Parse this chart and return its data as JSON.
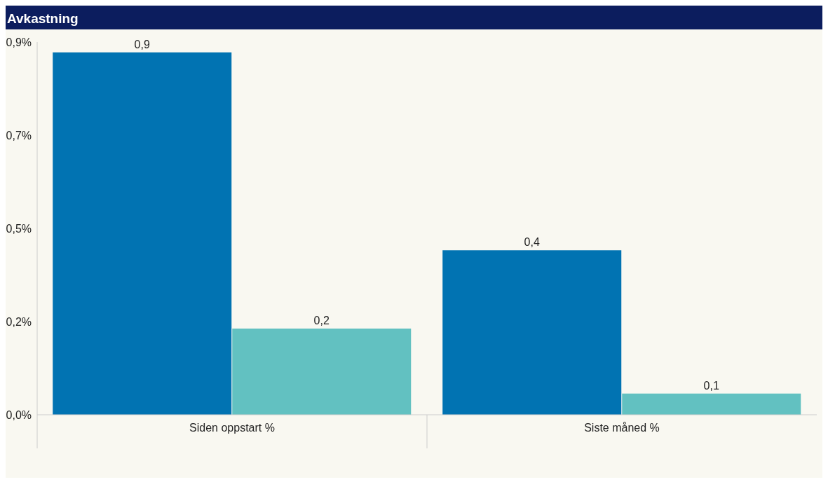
{
  "chart_data": {
    "type": "bar",
    "title": "Avkastning",
    "categories": [
      "Siden oppstart %",
      "Siste måned %"
    ],
    "series": [
      {
        "color": "#0173b2",
        "values": [
          0.875,
          0.397
        ],
        "value_labels": [
          "0,9",
          "0,4"
        ]
      },
      {
        "color": "#62c1c1",
        "values": [
          0.208,
          0.051
        ],
        "value_labels": [
          "0,2",
          "0,1"
        ]
      }
    ],
    "ylim": [
      0,
      0.9
    ],
    "yticks": [
      {
        "value": 0,
        "label": "0,0%"
      },
      {
        "value": 0.225,
        "label": "0,2%"
      },
      {
        "value": 0.45,
        "label": "0,5%"
      },
      {
        "value": 0.675,
        "label": "0,7%"
      },
      {
        "value": 0.9,
        "label": "0,9%"
      }
    ],
    "grid": false
  }
}
